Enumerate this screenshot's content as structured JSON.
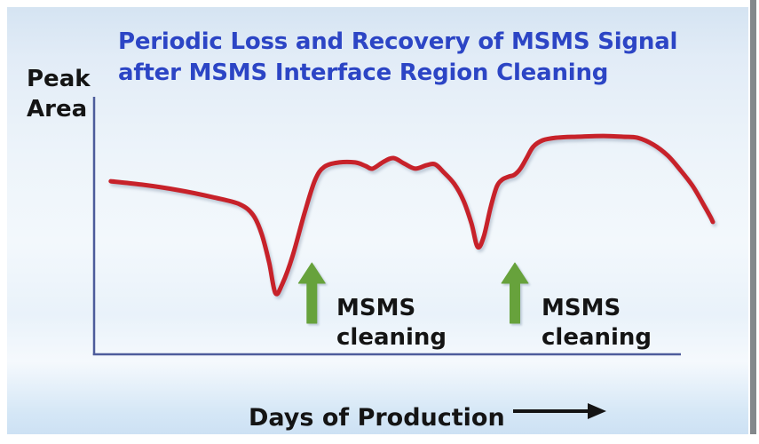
{
  "title": {
    "line1": "Periodic Loss and Recovery of MSMS Signal",
    "line2": "after MSMS Interface Region Cleaning"
  },
  "y_axis": {
    "label_line1": "Peak",
    "label_line2": "Area"
  },
  "x_axis": {
    "label": "Days of Production"
  },
  "annotations": [
    {
      "line1": "MSMS",
      "line2": "cleaning"
    },
    {
      "line1": "MSMS",
      "line2": "cleaning"
    }
  ],
  "colors": {
    "title": "#2c45c5",
    "text": "#141414",
    "axis": "#4d5c9b",
    "curve": "#c7222a",
    "cleaning_arrow": "#67a23c",
    "edge_gray": "#83888c"
  },
  "chart_data": {
    "type": "line",
    "title": "Periodic Loss and Recovery of MSMS Signal after MSMS Interface Region Cleaning",
    "xlabel": "Days of Production",
    "ylabel": "Peak Area",
    "axes": {
      "x_ticks": "none",
      "y_ticks": "none",
      "grid": false,
      "note": "qualitative sketch; x = relative days 0-100, y = relative peak area 0-100 of plot height"
    },
    "legend": "none",
    "series": [
      {
        "name": "MSMS signal peak area",
        "color": "#c7222a",
        "points": [
          [
            2.7,
            67.2
          ],
          [
            7.7,
            65.9
          ],
          [
            13.5,
            63.8
          ],
          [
            19.2,
            61.0
          ],
          [
            23.5,
            58.3
          ],
          [
            25.7,
            54.1
          ],
          [
            27.1,
            46.6
          ],
          [
            28.3,
            35.5
          ],
          [
            29.3,
            23.8
          ],
          [
            30.4,
            27.2
          ],
          [
            32.1,
            38.3
          ],
          [
            34.0,
            54.8
          ],
          [
            35.7,
            67.6
          ],
          [
            37.2,
            72.8
          ],
          [
            39.6,
            74.5
          ],
          [
            42.2,
            74.5
          ],
          [
            43.9,
            73.1
          ],
          [
            45.0,
            72.1
          ],
          [
            46.8,
            74.8
          ],
          [
            48.4,
            76.2
          ],
          [
            50.1,
            74.1
          ],
          [
            51.9,
            72.1
          ],
          [
            53.7,
            73.4
          ],
          [
            55.1,
            73.8
          ],
          [
            56.5,
            70.7
          ],
          [
            58.2,
            66.2
          ],
          [
            59.7,
            59.7
          ],
          [
            61.0,
            50.7
          ],
          [
            62.0,
            41.7
          ],
          [
            63.0,
            45.9
          ],
          [
            64.1,
            57.2
          ],
          [
            65.1,
            65.2
          ],
          [
            66.0,
            67.9
          ],
          [
            67.0,
            69.0
          ],
          [
            67.9,
            69.7
          ],
          [
            68.9,
            72.1
          ],
          [
            69.9,
            76.2
          ],
          [
            71.0,
            80.7
          ],
          [
            72.5,
            83.1
          ],
          [
            74.6,
            84.1
          ],
          [
            78.0,
            84.5
          ],
          [
            82.3,
            84.8
          ],
          [
            85.5,
            84.5
          ],
          [
            87.8,
            84.1
          ],
          [
            90.4,
            81.4
          ],
          [
            92.7,
            77.2
          ],
          [
            94.7,
            71.7
          ],
          [
            96.7,
            65.5
          ],
          [
            98.4,
            58.6
          ],
          [
            99.6,
            53.4
          ],
          [
            100,
            51.4
          ]
        ]
      }
    ],
    "events": [
      {
        "label": "MSMS cleaning",
        "marker": "green-up-arrow",
        "x": 35.2
      },
      {
        "label": "MSMS cleaning",
        "marker": "green-up-arrow",
        "x": 68.0
      }
    ]
  }
}
